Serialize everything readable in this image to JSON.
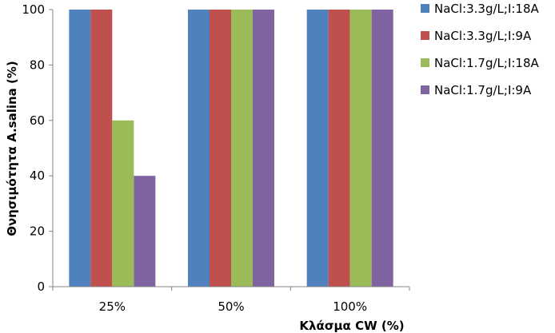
{
  "chart_data": {
    "type": "bar",
    "categories": [
      "25%",
      "50%",
      "100%"
    ],
    "series": [
      {
        "name": "NaCl:3.3g/L;I:18A",
        "values": [
          100,
          100,
          100
        ],
        "color": "#4F81BD"
      },
      {
        "name": "NaCl:3.3g/L;I:9A",
        "values": [
          100,
          100,
          100
        ],
        "color": "#C0504D"
      },
      {
        "name": "NaCl:1.7g/L;I:18A",
        "values": [
          60,
          100,
          100
        ],
        "color": "#9BBB59"
      },
      {
        "name": "NaCl:1.7g/L;I:9A",
        "values": [
          40,
          100,
          100
        ],
        "color": "#8064A2"
      }
    ],
    "title": "",
    "xlabel": "Κλάσμα CW (%)",
    "ylabel": "Θνησιμότητα A.salina (%)",
    "ylim": [
      0,
      100
    ],
    "yticks": [
      "0",
      "20",
      "40",
      "60",
      "80",
      "100"
    ],
    "grid": false,
    "legend": "right"
  }
}
